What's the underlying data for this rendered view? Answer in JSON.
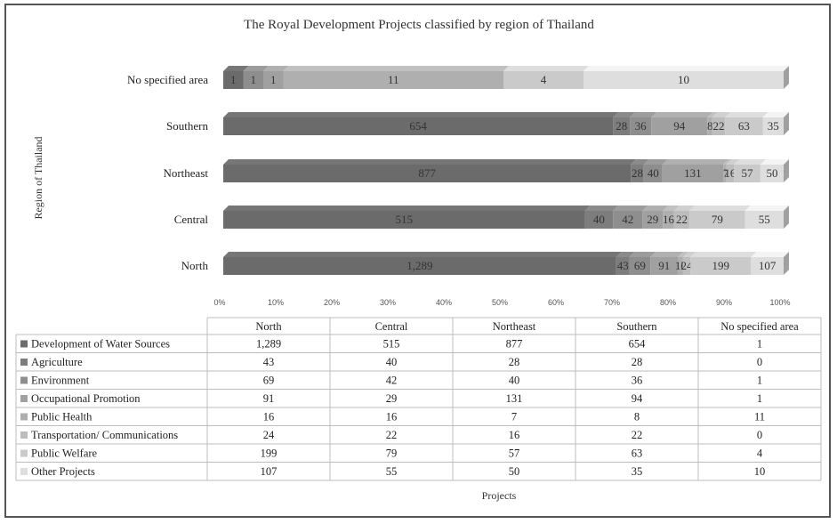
{
  "chart_data": {
    "type": "bar",
    "orientation": "horizontal",
    "stacked": "percent",
    "title": "The Royal Development Projects classified by region of Thailand",
    "xlabel": "Projects",
    "ylabel": "Region of Thailand",
    "xlim": [
      0,
      100
    ],
    "x_ticks": [
      "0%",
      "10%",
      "20%",
      "30%",
      "40%",
      "50%",
      "60%",
      "70%",
      "80%",
      "90%",
      "100%"
    ],
    "categories": [
      "North",
      "Central",
      "Northeast",
      "Southern",
      "No specified area"
    ],
    "category_order_on_chart": [
      "No specified area",
      "Southern",
      "Northeast",
      "Central",
      "North"
    ],
    "series": [
      {
        "name": "Development of Water Sources",
        "values": [
          1289,
          515,
          877,
          654,
          1
        ],
        "labels": [
          "1,289",
          "515",
          "877",
          "654",
          "1"
        ],
        "color": "#6b6b6b"
      },
      {
        "name": "Agriculture",
        "values": [
          43,
          40,
          28,
          28,
          0
        ],
        "labels": [
          "43",
          "40",
          "28",
          "28",
          "0"
        ],
        "color": "#7d7d7d"
      },
      {
        "name": "Environment",
        "values": [
          69,
          42,
          40,
          36,
          1
        ],
        "labels": [
          "69",
          "42",
          "40",
          "36",
          "1"
        ],
        "color": "#8e8e8e"
      },
      {
        "name": "Occupational Promotion",
        "values": [
          91,
          29,
          131,
          94,
          1
        ],
        "labels": [
          "91",
          "29",
          "131",
          "94",
          "1"
        ],
        "color": "#a0a0a0"
      },
      {
        "name": "Public Health",
        "values": [
          16,
          16,
          7,
          8,
          11
        ],
        "labels": [
          "16",
          "16",
          "7",
          "8",
          "11"
        ],
        "color": "#afafaf"
      },
      {
        "name": "Transportation/ Communications",
        "values": [
          24,
          22,
          16,
          22,
          0
        ],
        "labels": [
          "24",
          "22",
          "16",
          "22",
          "0"
        ],
        "color": "#bdbdbd"
      },
      {
        "name": "Public Welfare",
        "values": [
          199,
          79,
          57,
          63,
          4
        ],
        "labels": [
          "199",
          "79",
          "57",
          "63",
          "4"
        ],
        "color": "#cacaca"
      },
      {
        "name": "Other Projects",
        "values": [
          107,
          55,
          50,
          35,
          10
        ],
        "labels": [
          "107",
          "55",
          "50",
          "35",
          "10"
        ],
        "color": "#dedede"
      }
    ],
    "grid": false,
    "legend": "data-table-below"
  }
}
